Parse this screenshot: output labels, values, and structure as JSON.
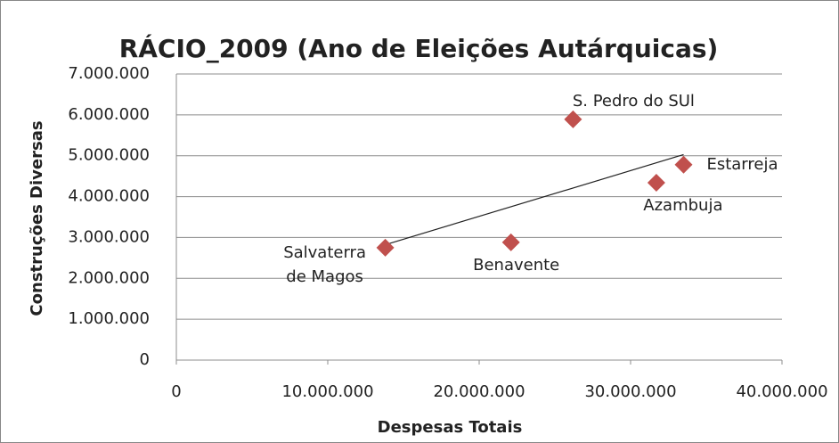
{
  "chart_data": {
    "type": "scatter",
    "title": "RÁCIO_2009 (Ano de Eleições Autárquicas)",
    "x_label": "Despesas Totais",
    "y_label": "Construções Diversas",
    "series": [
      {
        "name": "RÁCIO_2009",
        "color": "#c0504d",
        "x": [
          13800000,
          22100000,
          26200000,
          31700000,
          33500000
        ],
        "values": [
          2750000,
          2880000,
          5890000,
          4340000,
          4780000
        ],
        "labels": [
          "Salvaterra de Magos",
          "Benavente",
          "S. Pedro do SUl",
          "Azambuja",
          "Estarreja"
        ]
      }
    ],
    "trendline": true,
    "xlim": [
      0,
      40000000
    ],
    "xticks": [
      0,
      {
        "value": 10000000,
        "label": "10.000.000"
      },
      {
        "value": 20000000,
        "label": "20.000.000"
      },
      {
        "value": 30000000,
        "label": "30.000.000"
      },
      {
        "value": 40000000,
        "label": "40.000.000"
      }
    ],
    "ylim": [
      0,
      7000000
    ],
    "yticks": [
      0,
      {
        "value": 1000000,
        "label": "1.000.000"
      },
      {
        "value": 2000000,
        "label": "2.000.000"
      },
      {
        "value": 3000000,
        "label": "3.000.000"
      },
      {
        "value": 4000000,
        "label": "4.000.000"
      },
      {
        "value": 5000000,
        "label": "5.000.000"
      },
      {
        "value": 6000000,
        "label": "6.000.000"
      },
      {
        "value": 7000000,
        "label": "7.000.000"
      }
    ],
    "grid": true
  }
}
